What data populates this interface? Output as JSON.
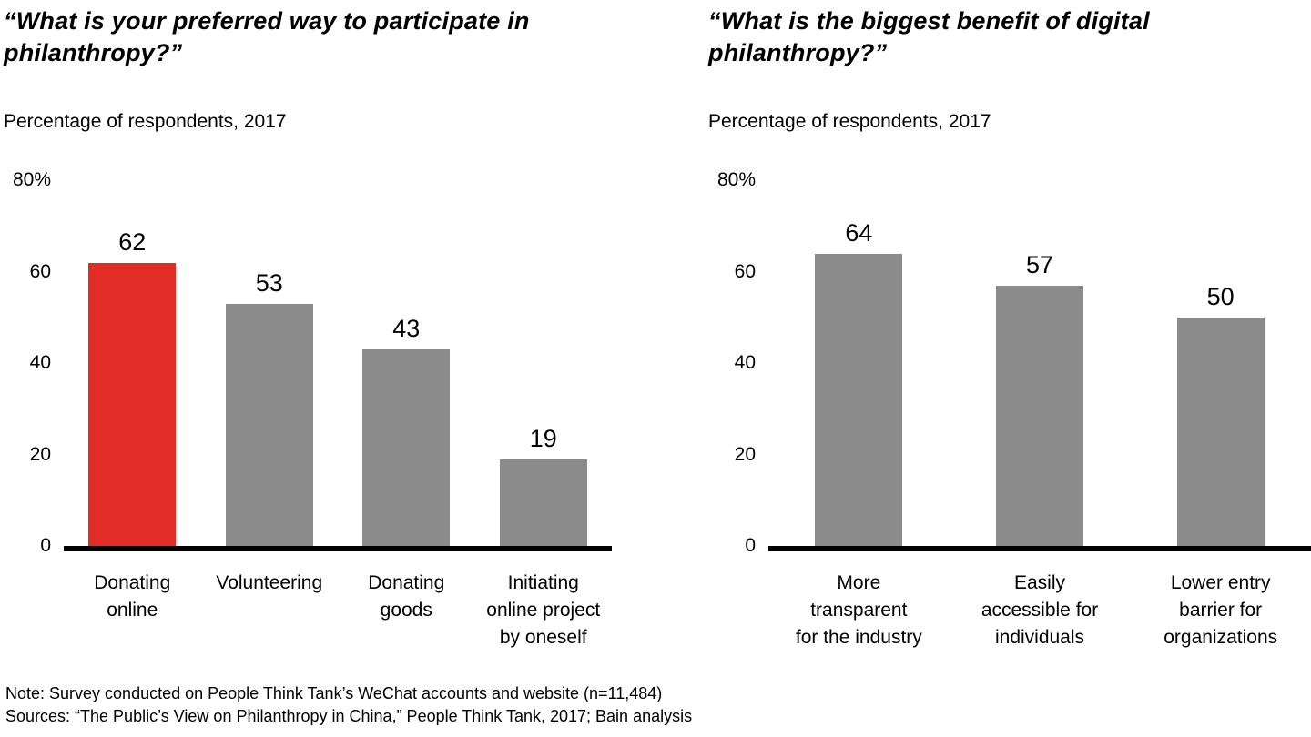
{
  "colors": {
    "highlight": "#e22d26",
    "bar": "#8b8b8b",
    "axis": "#000000"
  },
  "footnotes": {
    "note": "Note: Survey conducted on People Think Tank’s WeChat accounts and website (n=11,484)",
    "sources": "Sources: “The Public’s View on Philanthropy in China,” People Think Tank, 2017; Bain analysis"
  },
  "chart_data": [
    {
      "type": "bar",
      "title": "“What is your preferred way to participate in philanthropy?”",
      "subtitle": "Percentage of respondents, 2017",
      "categories": [
        "Donating\nonline",
        "Volunteering",
        "Donating\ngoods",
        "Initiating\nonline project\nby oneself"
      ],
      "values": [
        62,
        53,
        43,
        19
      ],
      "bar_colors": [
        "highlight",
        "bar",
        "bar",
        "bar"
      ],
      "xlabel": "",
      "ylabel": "Percentage of respondents",
      "ylim": [
        0,
        80
      ],
      "grid": false,
      "legend": "none",
      "yticks": [
        {
          "value": 0,
          "label": "0"
        },
        {
          "value": 20,
          "label": "20"
        },
        {
          "value": 40,
          "label": "40"
        },
        {
          "value": 60,
          "label": "60"
        },
        {
          "value": 80,
          "label": "80%"
        }
      ]
    },
    {
      "type": "bar",
      "title": "“What is the biggest benefit of digital philanthropy?”",
      "subtitle": "Percentage of respondents, 2017",
      "categories": [
        "More\ntransparent\nfor the industry",
        "Easily\naccessible for\nindividuals",
        "Lower entry\nbarrier for\norganizations"
      ],
      "values": [
        64,
        57,
        50
      ],
      "bar_colors": [
        "bar",
        "bar",
        "bar"
      ],
      "xlabel": "",
      "ylabel": "Percentage of respondents",
      "ylim": [
        0,
        80
      ],
      "grid": false,
      "legend": "none",
      "yticks": [
        {
          "value": 0,
          "label": "0"
        },
        {
          "value": 20,
          "label": "20"
        },
        {
          "value": 40,
          "label": "40"
        },
        {
          "value": 60,
          "label": "60"
        },
        {
          "value": 80,
          "label": "80%"
        }
      ]
    }
  ]
}
